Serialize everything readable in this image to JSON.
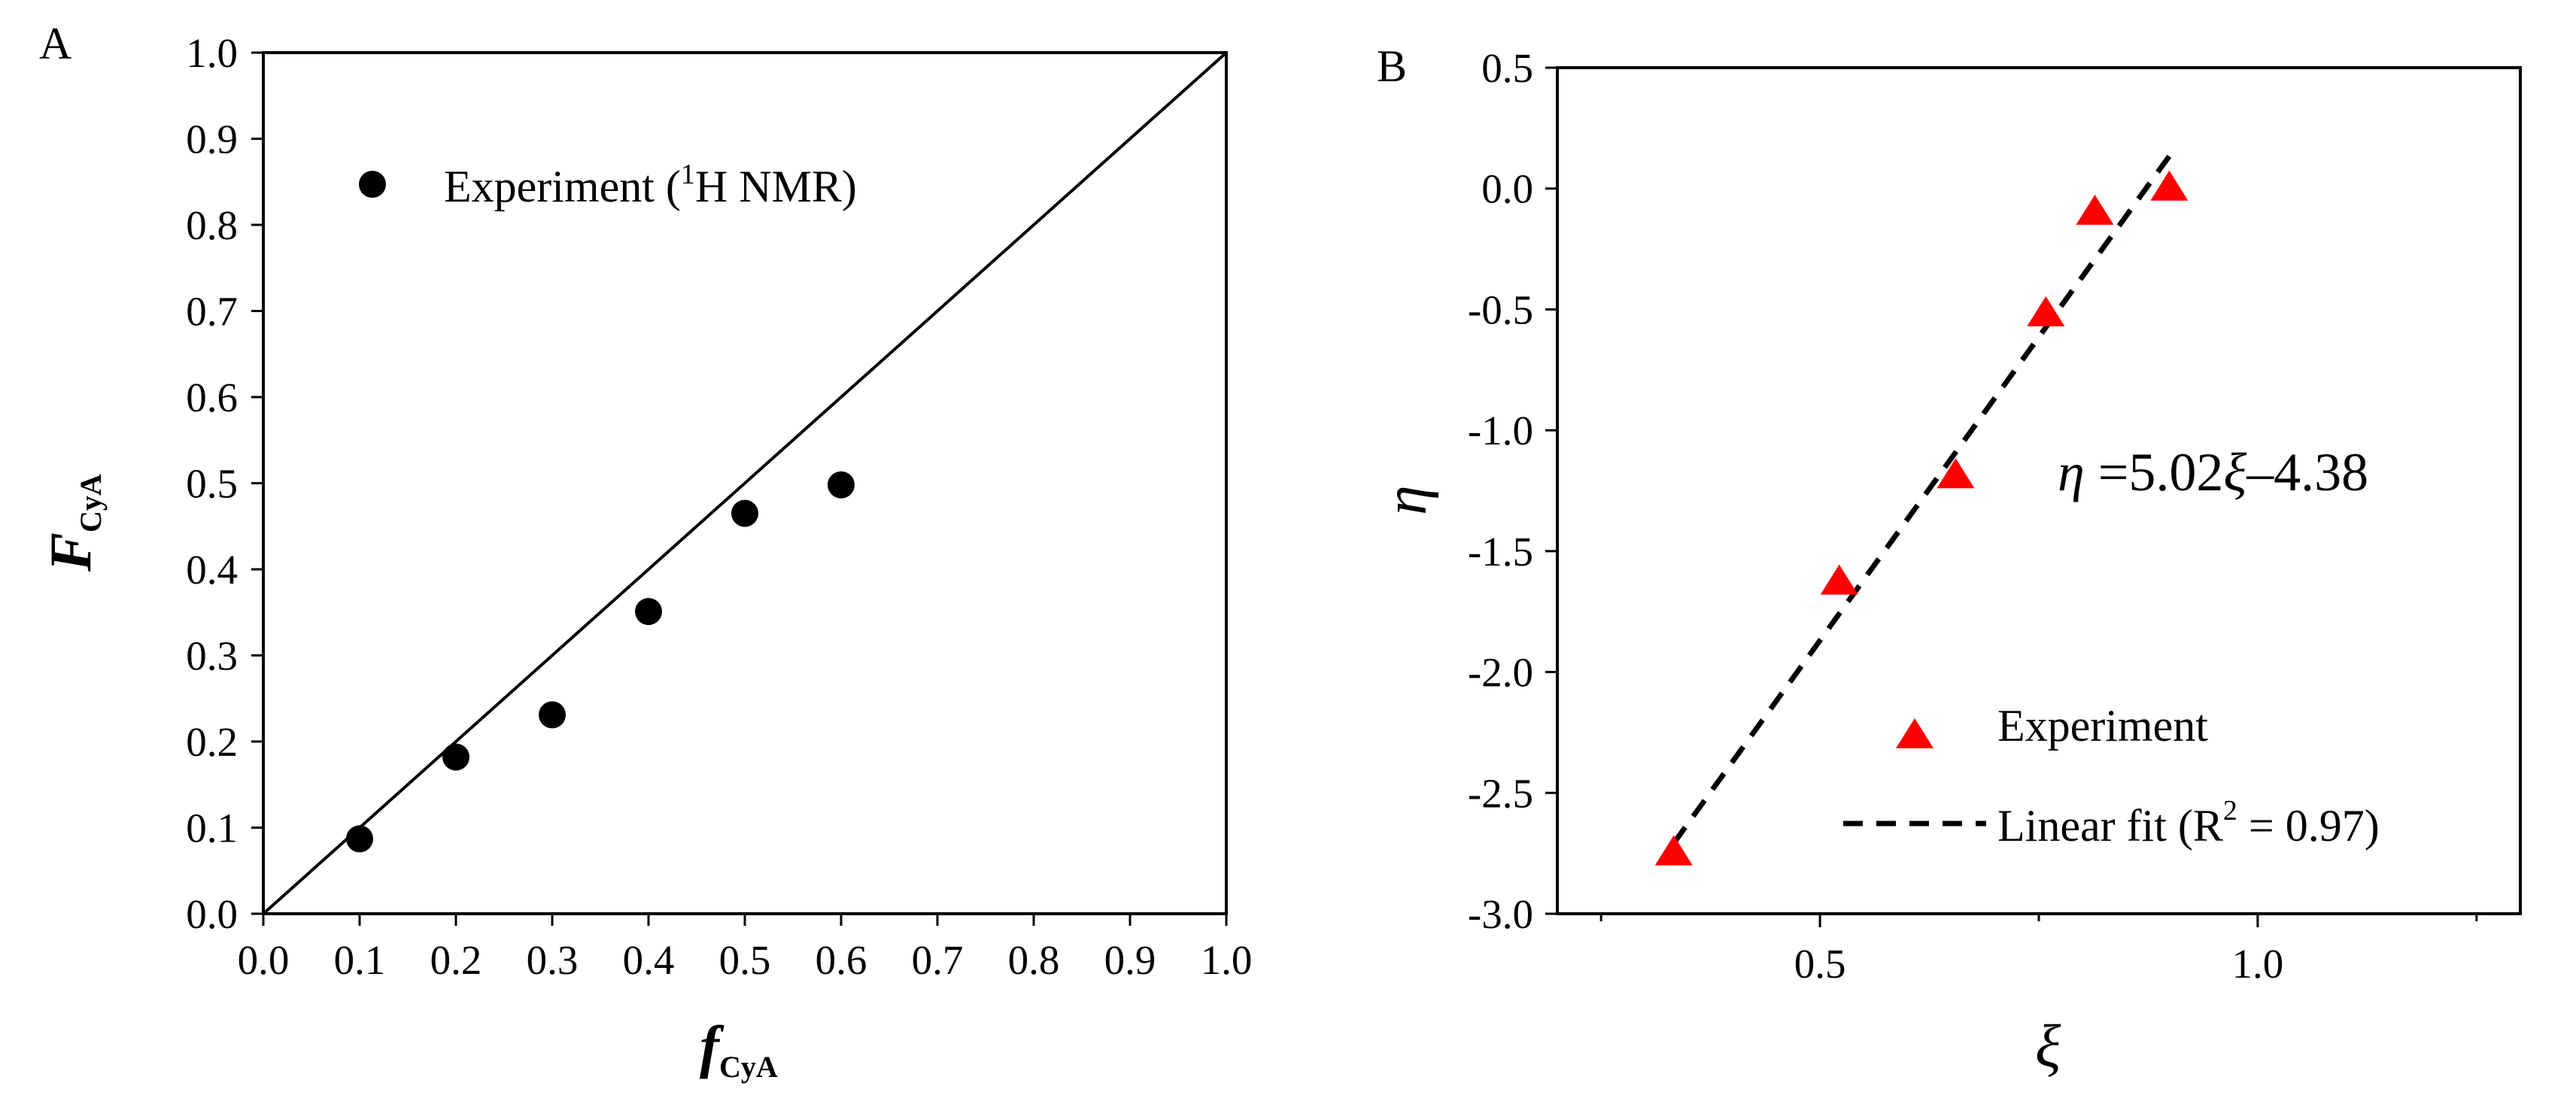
{
  "chart_data": [
    {
      "panel": "A",
      "type": "scatter",
      "xlabel": {
        "main": "f",
        "sub": "CyA"
      },
      "ylabel": {
        "main": "F",
        "sub": "CyA"
      },
      "xlim": [
        0.0,
        1.0
      ],
      "ylim": [
        0.0,
        1.0
      ],
      "xticks": [
        "0.0",
        "0.1",
        "0.2",
        "0.3",
        "0.4",
        "0.5",
        "0.6",
        "0.7",
        "0.8",
        "0.9",
        "1.0"
      ],
      "yticks": [
        "0.0",
        "0.1",
        "0.2",
        "0.3",
        "0.4",
        "0.5",
        "0.6",
        "0.7",
        "0.8",
        "0.9",
        "1.0"
      ],
      "grid": false,
      "legend_position": "top-left",
      "series": [
        {
          "name": "Experiment (1H NMR)",
          "legend_parts": [
            "Experiment (",
            "1",
            "H NMR)"
          ],
          "marker": "circle",
          "color": "#000000",
          "x": [
            0.1,
            0.2,
            0.3,
            0.4,
            0.5,
            0.6
          ],
          "y": [
            0.087,
            0.182,
            0.231,
            0.351,
            0.465,
            0.498
          ]
        },
        {
          "name": "",
          "type": "line",
          "color": "#000000",
          "x": [
            0.0,
            1.0
          ],
          "y": [
            0.0,
            1.0
          ]
        }
      ]
    },
    {
      "panel": "B",
      "type": "scatter",
      "xlabel": "ξ",
      "ylabel": "η",
      "xlim": [
        0.2,
        1.3
      ],
      "ylim": [
        -3.0,
        0.5
      ],
      "xticks": [
        "0.5",
        "1.0"
      ],
      "xtick_values": [
        0.5,
        1.0
      ],
      "yticks": [
        "0.5",
        "0.0",
        "-0.5",
        "-1.0",
        "-1.5",
        "-2.0",
        "-2.5",
        "-3.0"
      ],
      "ytick_values": [
        0.5,
        0.0,
        -0.5,
        -1.0,
        -1.5,
        -2.0,
        -2.5,
        -3.0
      ],
      "grid": false,
      "legend_position": "bottom-right",
      "annotation": {
        "parts": [
          "η",
          " =5.02",
          "ξ",
          "–4.38"
        ]
      },
      "series": [
        {
          "name": "Experiment",
          "marker": "triangle",
          "color": "#ff0000",
          "x": [
            0.333,
            0.522,
            0.655,
            0.758,
            0.814,
            0.899
          ],
          "y": [
            -2.75,
            -1.63,
            -1.19,
            -0.52,
            -0.1,
            0.0
          ]
        },
        {
          "name": "Linear fit (R2 = 0.97)",
          "legend_parts": [
            "Linear fit (R",
            "2",
            " = 0.97)"
          ],
          "type": "dashed-line",
          "color": "#000000",
          "x": [
            0.333,
            0.899
          ],
          "y": [
            -2.708,
            0.134
          ]
        }
      ]
    }
  ]
}
